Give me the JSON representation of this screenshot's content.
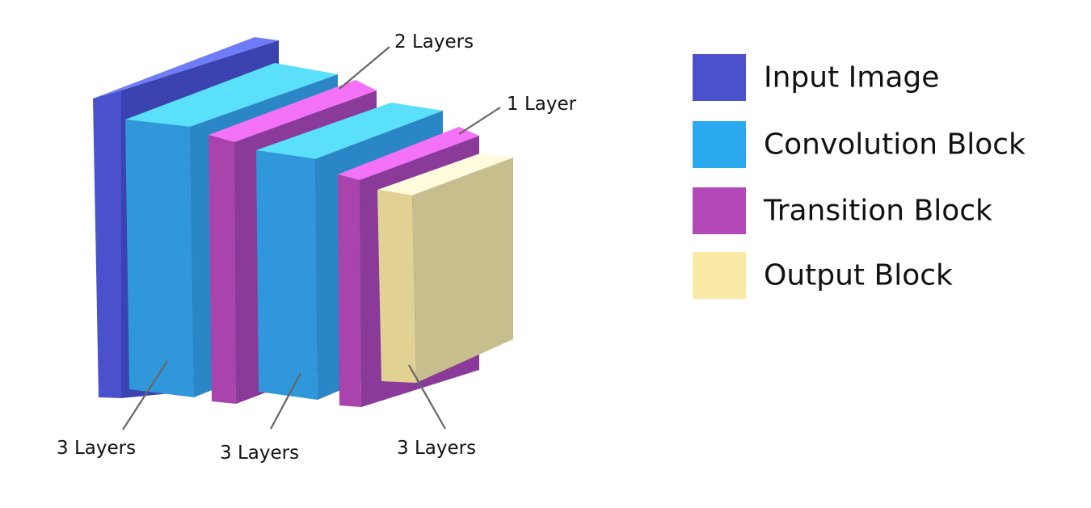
{
  "colors": {
    "input_image": "#4b51cd",
    "convolution_block": "#2aa8ee",
    "transition_block": "#b548b8",
    "output_block": "#fbe9a7"
  },
  "legend": {
    "items": [
      {
        "label": "Input Image",
        "color": "#4b51cd"
      },
      {
        "label": "Convolution Block",
        "color": "#2aa8ee"
      },
      {
        "label": "Transition Block",
        "color": "#b548b8"
      },
      {
        "label": "Output Block",
        "color": "#fbe9a7"
      }
    ]
  },
  "callouts": {
    "first_conv": "3 Layers",
    "first_transition": "2 Layers",
    "second_conv": "3 Layers",
    "second_transition": "1 Layer",
    "output": "3 Layers"
  }
}
